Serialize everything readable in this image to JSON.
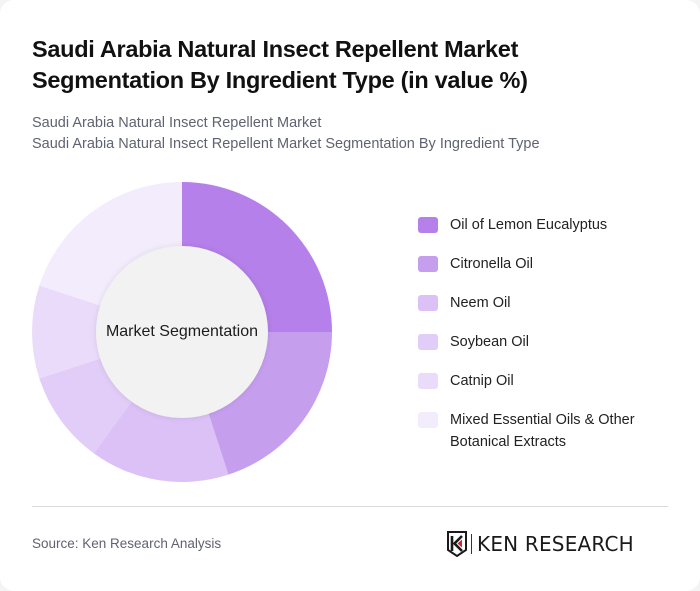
{
  "header": {
    "title": "Saudi Arabia Natural Insect Repellent Market Segmentation By Ingredient Type (in value %)",
    "subtitle_line1": "Saudi Arabia Natural Insect Repellent Market",
    "subtitle_line2": "Saudi Arabia Natural Insect Repellent Market Segmentation By Ingredient Type"
  },
  "chart": {
    "center_label": "Market Segmentation"
  },
  "legend": {
    "items": [
      {
        "label": "Oil of Lemon Eucalyptus",
        "color": "#B580EA"
      },
      {
        "label": "Citronella Oil",
        "color": "#C69EEE"
      },
      {
        "label": "Neem Oil",
        "color": "#DBC1F6"
      },
      {
        "label": "Soybean Oil",
        "color": "#E1CDF7"
      },
      {
        "label": "Catnip Oil",
        "color": "#EADBFA"
      },
      {
        "label": "Mixed Essential Oils & Other Botanical Extracts",
        "color": "#F3ECFC"
      }
    ]
  },
  "footer": {
    "source": "Source: Ken Research Analysis",
    "logo_text": "KEN RESEARCH"
  },
  "chart_data": {
    "type": "pie",
    "title": "Saudi Arabia Natural Insect Repellent Market Segmentation By Ingredient Type (in value %)",
    "subtitle": "Saudi Arabia Natural Insect Repellent Market Segmentation By Ingredient Type",
    "center_text": "Market Segmentation",
    "donut": true,
    "categories": [
      "Oil of Lemon Eucalyptus",
      "Citronella Oil",
      "Neem Oil",
      "Soybean Oil",
      "Catnip Oil",
      "Mixed Essential Oils & Other Botanical Extracts"
    ],
    "values": [
      25,
      20,
      15,
      10,
      10,
      20
    ],
    "colors": [
      "#B580EA",
      "#C69EEE",
      "#DBC1F6",
      "#E1CDF7",
      "#EADBFA",
      "#F3ECFC"
    ],
    "unit": "%",
    "legend_position": "right",
    "start_angle_deg": 0,
    "direction": "clockwise",
    "source": "Source: Ken Research Analysis"
  }
}
